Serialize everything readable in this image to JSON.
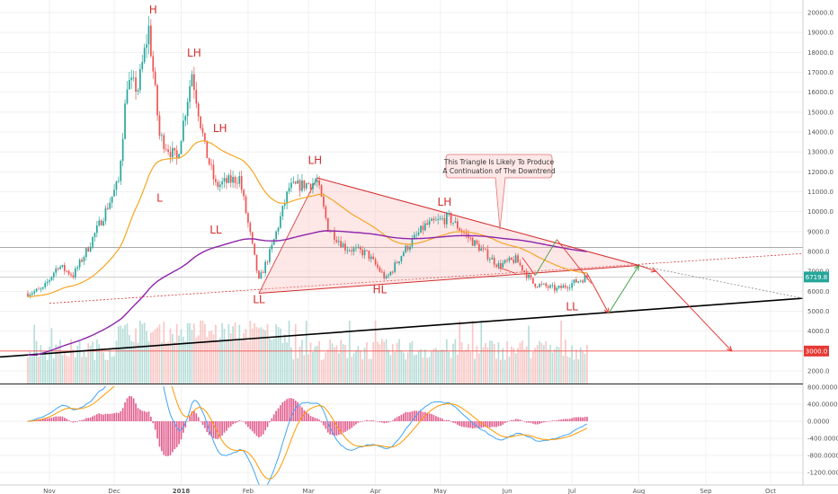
{
  "chart_data": [
    {
      "type": "candlestick",
      "title": "",
      "price_axis": {
        "ticks": [
          "20000.0",
          "19000.0",
          "18000.0",
          "17000.0",
          "16000.0",
          "15000.0",
          "14000.0",
          "13000.0",
          "12000.0",
          "11000.0",
          "10000.0",
          "9000.0",
          "8000.0",
          "7000.0",
          "6000.0",
          "5000.0",
          "4000.0",
          "3000.0",
          "2000.0"
        ],
        "range": [
          1000,
          20500
        ]
      },
      "time_axis": {
        "ticks": [
          "Nov",
          "Dec",
          "2018",
          "Feb",
          "Mar",
          "Apr",
          "May",
          "Jun",
          "Jul",
          "Aug",
          "Sep",
          "Oct"
        ]
      },
      "badges": {
        "current_price": "6719.8",
        "target_price": "3000.0"
      },
      "wave_labels": [
        "H",
        "LH",
        "L",
        "LH",
        "LL",
        "LH",
        "LL",
        "HL",
        "LH",
        "LL"
      ],
      "annotation": {
        "line1": "This Triangle Is Likely To Produce",
        "line2": "A Continuation of The Downtrend"
      },
      "price_series": [
        {
          "date": "2017-10-22",
          "close": 5900
        },
        {
          "date": "2017-10-29",
          "close": 6100
        },
        {
          "date": "2017-11-05",
          "close": 7300
        },
        {
          "date": "2017-11-12",
          "close": 6800
        },
        {
          "date": "2017-11-19",
          "close": 8200
        },
        {
          "date": "2017-11-26",
          "close": 9800
        },
        {
          "date": "2017-12-03",
          "close": 11500
        },
        {
          "date": "2017-12-07",
          "close": 16500
        },
        {
          "date": "2017-12-12",
          "close": 16200
        },
        {
          "date": "2017-12-17",
          "close": 19200
        },
        {
          "date": "2017-12-22",
          "close": 13800
        },
        {
          "date": "2017-12-30",
          "close": 12600
        },
        {
          "date": "2018-01-06",
          "close": 17000
        },
        {
          "date": "2018-01-12",
          "close": 13200
        },
        {
          "date": "2018-01-17",
          "close": 11300
        },
        {
          "date": "2018-01-28",
          "close": 11700
        },
        {
          "date": "2018-02-06",
          "close": 6500
        },
        {
          "date": "2018-02-12",
          "close": 8200
        },
        {
          "date": "2018-02-20",
          "close": 11200
        },
        {
          "date": "2018-03-05",
          "close": 11500
        },
        {
          "date": "2018-03-10",
          "close": 9200
        },
        {
          "date": "2018-03-18",
          "close": 8200
        },
        {
          "date": "2018-03-28",
          "close": 7900
        },
        {
          "date": "2018-04-06",
          "close": 6600
        },
        {
          "date": "2018-04-14",
          "close": 8000
        },
        {
          "date": "2018-04-24",
          "close": 9300
        },
        {
          "date": "2018-05-05",
          "close": 9700
        },
        {
          "date": "2018-05-15",
          "close": 8600
        },
        {
          "date": "2018-05-28",
          "close": 7300
        },
        {
          "date": "2018-06-05",
          "close": 7600
        },
        {
          "date": "2018-06-13",
          "close": 6400
        },
        {
          "date": "2018-06-24",
          "close": 6100
        },
        {
          "date": "2018-07-01",
          "close": 6400
        },
        {
          "date": "2018-07-08",
          "close": 6720
        }
      ],
      "projection": [
        {
          "date": "2018-07-08",
          "value": 6900
        },
        {
          "date": "2018-07-18",
          "value": 4900
        },
        {
          "date": "2018-08-01",
          "value": 7300
        },
        {
          "date": "2018-08-09",
          "value": 7000
        },
        {
          "date": "2018-09-13",
          "value": 3000
        }
      ],
      "macd_axis": {
        "ticks": [
          "800.0000",
          "400.0000",
          "0.0000",
          "-400.0000",
          "-800.0000",
          "-1200.0000"
        ],
        "range": [
          -1450,
          1000
        ]
      },
      "colors": {
        "up": "#26a69a",
        "down": "#ef5350",
        "ema_short": "#f5a623",
        "ema_long": "#8e24aa",
        "trend": "#d32f2f",
        "support": "#000000",
        "macd": "#42a5f5",
        "signal": "#ff9800",
        "histogram": "#d81b60"
      }
    }
  ]
}
